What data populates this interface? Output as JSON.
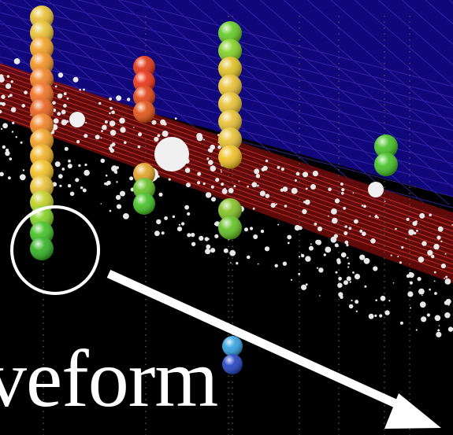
{
  "caption": {
    "text": "veform"
  },
  "scene": {
    "description_colors": {
      "background": "#000000",
      "grid_upper": "#2a1f8f",
      "ice_band": "#b3261e",
      "scatter": "#e8e8e8",
      "callout_ring": "#ffffff",
      "arrow": "#ffffff"
    },
    "strings": [
      {
        "dom_colors": [
          "#e8c030",
          "#e8c030",
          "#f0a020",
          "#f09020",
          "#f08020",
          "#f07020",
          "#e86018",
          "#f08020",
          "#f0a020",
          "#f0b020",
          "#f0c020",
          "#e8c030",
          "#c0d020",
          "#80d020",
          "#40c020",
          "#30b020"
        ]
      },
      {
        "dom_colors": [
          "#e03010",
          "#e83010",
          "#e04010",
          "#e05010",
          "#e0a020",
          "#60c020",
          "#40c020"
        ]
      },
      {
        "dom_colors": [
          "#60c820",
          "#80d020",
          "#e0c020",
          "#e8c030",
          "#e8c030",
          "#e8c030",
          "#e8c030",
          "#f0c020",
          "#80c020",
          "#60c020"
        ]
      },
      {
        "dom_colors": [
          "#40c020",
          "#40c020"
        ]
      },
      {
        "dom_colors": [
          "#30a0e0",
          "#2040c0"
        ]
      }
    ]
  }
}
